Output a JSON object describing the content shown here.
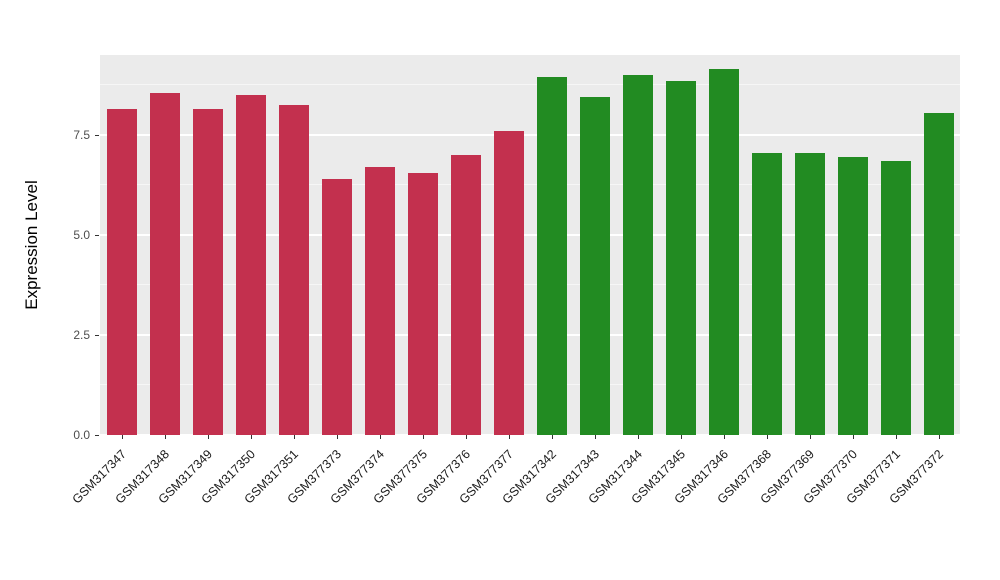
{
  "chart_data": {
    "type": "bar",
    "title": "",
    "xlabel": "",
    "ylabel": "Expression Level",
    "ylim": [
      0,
      9.5
    ],
    "yticks": [
      0,
      2.5,
      5,
      7.5
    ],
    "minor_yticks": [
      1.25,
      3.75,
      6.25,
      8.75
    ],
    "grid": "on",
    "legend": "none",
    "panel_bg": "#EBEBEB",
    "grid_color": "#FFFFFF",
    "categories": [
      "GSM317347",
      "GSM317348",
      "GSM317349",
      "GSM317350",
      "GSM317351",
      "GSM377373",
      "GSM377374",
      "GSM377375",
      "GSM377376",
      "GSM377377",
      "GSM317342",
      "GSM317343",
      "GSM317344",
      "GSM317345",
      "GSM317346",
      "GSM377368",
      "GSM377369",
      "GSM377370",
      "GSM377371",
      "GSM377372"
    ],
    "series": [
      {
        "name": "Expression Level",
        "values": [
          8.15,
          8.55,
          8.15,
          8.5,
          8.25,
          6.4,
          6.7,
          6.55,
          7.0,
          7.6,
          8.95,
          8.45,
          9.0,
          8.85,
          9.15,
          7.05,
          7.05,
          6.95,
          6.85,
          8.05
        ]
      }
    ],
    "groups": [
      "group1",
      "group1",
      "group1",
      "group1",
      "group1",
      "group1",
      "group1",
      "group1",
      "group1",
      "group1",
      "group2",
      "group2",
      "group2",
      "group2",
      "group2",
      "group2",
      "group2",
      "group2",
      "group2",
      "group2"
    ],
    "colors": {
      "group1": "#C3304E",
      "group2": "#228B22"
    }
  }
}
